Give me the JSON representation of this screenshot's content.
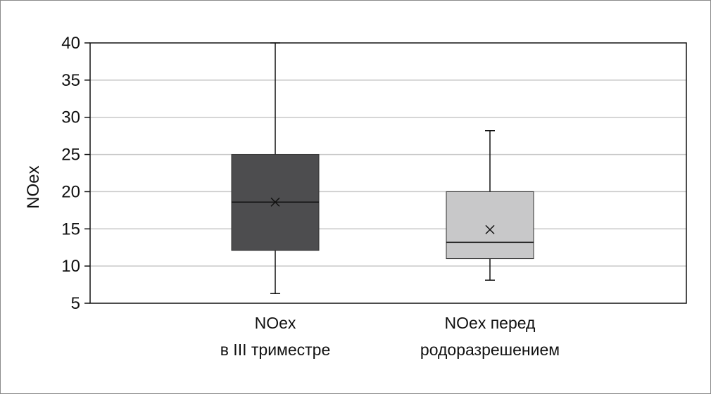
{
  "chart_data": {
    "type": "box",
    "title": "",
    "xlabel": "",
    "ylabel": "NOex",
    "ylim": [
      5,
      40
    ],
    "yticks": [
      "5",
      "10",
      "15",
      "20",
      "25",
      "30",
      "35",
      "40"
    ],
    "grid": true,
    "legend": "none",
    "categories": [
      {
        "line1": "NOex",
        "line2": "в III триместре"
      },
      {
        "line1": "NOex перед",
        "line2": "родоразрешением"
      }
    ],
    "series": [
      {
        "min": 6.3,
        "q1": 12.1,
        "median": 18.6,
        "mean": 18.6,
        "q3": 25.0,
        "max": 40.0,
        "fill": "#4d4d4f"
      },
      {
        "min": 8.1,
        "q1": 11.0,
        "median": 13.2,
        "mean": 14.9,
        "q3": 20.0,
        "max": 28.2,
        "fill": "#c8c8c9"
      }
    ],
    "colors": {
      "grid": "#c8c8c8",
      "axis": "#111111",
      "whisker": "#111111",
      "median_line": "#111111"
    }
  }
}
